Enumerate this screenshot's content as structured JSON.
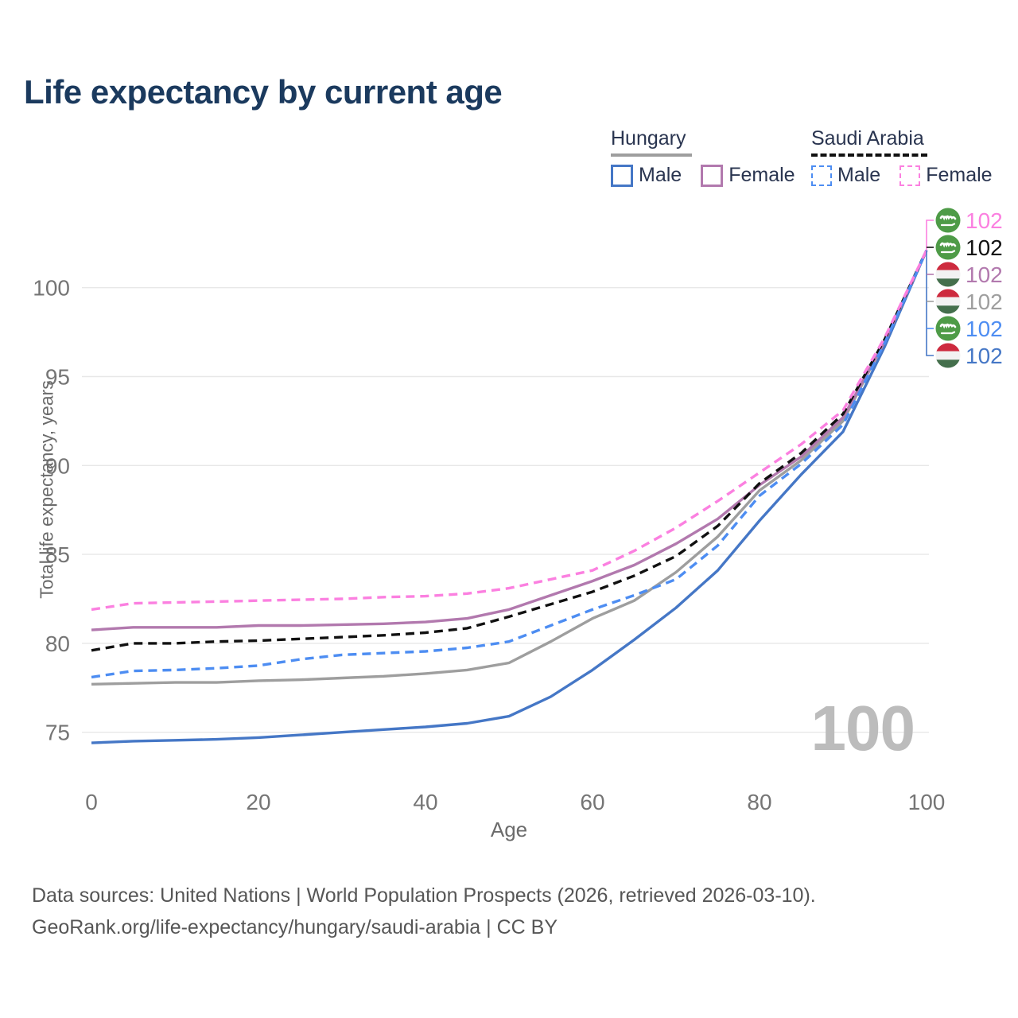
{
  "title": "Life expectancy by current age",
  "legend": {
    "groups": [
      {
        "label": "Hungary",
        "line_style": "solid",
        "underline_color": "#9e9e9e",
        "items": [
          {
            "label": "Male",
            "color": "#4577c6"
          },
          {
            "label": "Female",
            "color": "#b279ae"
          }
        ]
      },
      {
        "label": "Saudi Arabia",
        "line_style": "dashed",
        "underline_color": "#111111",
        "items": [
          {
            "label": "Male",
            "color": "#4d8df2"
          },
          {
            "label": "Female",
            "color": "#fb80e0"
          }
        ]
      }
    ]
  },
  "watermark": "100",
  "footer": {
    "line1": "Data sources: United Nations | World Population Prospects (2026, retrieved 2026-03-10).",
    "line2": "GeoRank.org/life-expectancy/hungary/saudi-arabia | CC BY"
  },
  "chart_data": {
    "type": "line",
    "title": "Life expectancy by current age",
    "xlabel": "Age",
    "ylabel": "Total life expectancy, years",
    "x_ticks": [
      0,
      20,
      40,
      60,
      80,
      100
    ],
    "y_ticks": [
      75,
      80,
      85,
      90,
      95,
      100
    ],
    "xlim": [
      0,
      100
    ],
    "ylim": [
      72.5,
      103
    ],
    "grid": "horizontal",
    "legend_position": "top-right",
    "ages": [
      0,
      5,
      10,
      15,
      20,
      25,
      30,
      35,
      40,
      45,
      50,
      55,
      60,
      65,
      70,
      75,
      80,
      85,
      90,
      95,
      100
    ],
    "series": [
      {
        "name": "Saudi Arabia Female",
        "country": "Saudi Arabia",
        "sex": "Female",
        "flag": "saudi",
        "color": "#fb80e0",
        "dash": true,
        "end_label": "102",
        "values": [
          81.9,
          82.25,
          82.3,
          82.35,
          82.4,
          82.45,
          82.5,
          82.6,
          82.65,
          82.8,
          83.1,
          83.6,
          84.1,
          85.2,
          86.5,
          88.0,
          89.6,
          91.2,
          93.1,
          97.2,
          102.1
        ]
      },
      {
        "name": "Saudi Arabia",
        "country": "Saudi Arabia",
        "sex": "Both",
        "flag": "saudi",
        "color": "#111111",
        "dash": true,
        "end_label": "102",
        "values": [
          79.6,
          80.0,
          80.0,
          80.1,
          80.15,
          80.25,
          80.35,
          80.45,
          80.6,
          80.85,
          81.5,
          82.2,
          82.9,
          83.8,
          84.9,
          86.6,
          89.0,
          90.7,
          92.9,
          97.1,
          102.1
        ]
      },
      {
        "name": "Hungary Female",
        "country": "Hungary",
        "sex": "Female",
        "flag": "hungary",
        "color": "#b279ae",
        "dash": false,
        "end_label": "102",
        "values": [
          80.75,
          80.9,
          80.9,
          80.9,
          81.0,
          81.0,
          81.05,
          81.1,
          81.2,
          81.4,
          81.9,
          82.7,
          83.5,
          84.4,
          85.6,
          87.0,
          88.9,
          90.5,
          92.7,
          97.0,
          102.1
        ]
      },
      {
        "name": "Hungary",
        "country": "Hungary",
        "sex": "Both",
        "flag": "hungary",
        "color": "#9e9e9e",
        "dash": false,
        "end_label": "102",
        "values": [
          77.7,
          77.75,
          77.8,
          77.8,
          77.9,
          77.95,
          78.05,
          78.15,
          78.3,
          78.5,
          78.9,
          80.1,
          81.4,
          82.4,
          84.0,
          86.0,
          88.6,
          90.3,
          92.5,
          97.0,
          102.1
        ]
      },
      {
        "name": "Saudi Arabia Male",
        "country": "Saudi Arabia",
        "sex": "Male",
        "flag": "saudi",
        "color": "#4d8df2",
        "dash": true,
        "end_label": "102",
        "values": [
          78.1,
          78.45,
          78.5,
          78.6,
          78.75,
          79.1,
          79.35,
          79.45,
          79.55,
          79.75,
          80.1,
          81.0,
          81.9,
          82.7,
          83.6,
          85.5,
          88.3,
          90.1,
          92.3,
          96.9,
          102.1
        ]
      },
      {
        "name": "Hungary Male",
        "country": "Hungary",
        "sex": "Male",
        "flag": "hungary",
        "color": "#4577c6",
        "dash": false,
        "end_label": "102",
        "values": [
          74.4,
          74.5,
          74.55,
          74.6,
          74.7,
          74.85,
          75.0,
          75.15,
          75.3,
          75.5,
          75.9,
          77.0,
          78.5,
          80.2,
          82.0,
          84.1,
          86.9,
          89.5,
          91.9,
          96.7,
          102.1
        ]
      }
    ],
    "flag_colors": {
      "saudi_green": "#4e9b47",
      "hungary_red": "#cd2a3e",
      "hungary_white": "#f2f2f2",
      "hungary_green": "#446f4c"
    },
    "axis_color": "#757575",
    "grid_color": "#e8e8e8"
  }
}
